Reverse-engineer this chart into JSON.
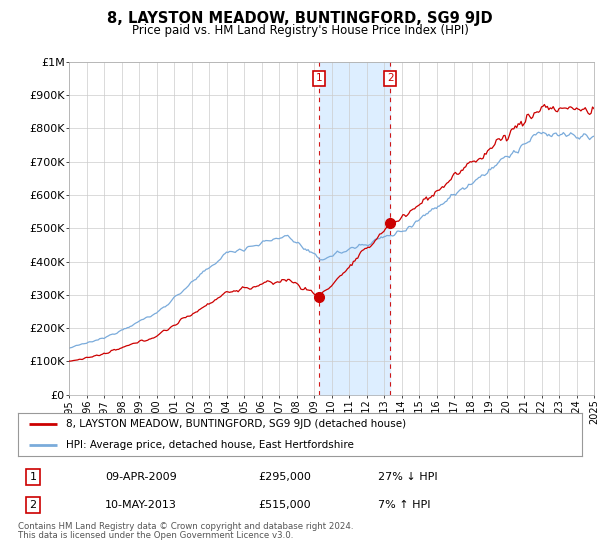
{
  "title": "8, LAYSTON MEADOW, BUNTINGFORD, SG9 9JD",
  "subtitle": "Price paid vs. HM Land Registry's House Price Index (HPI)",
  "ylabel_ticks": [
    "£0",
    "£100K",
    "£200K",
    "£300K",
    "£400K",
    "£500K",
    "£600K",
    "£700K",
    "£800K",
    "£900K",
    "£1M"
  ],
  "ytick_values": [
    0,
    100000,
    200000,
    300000,
    400000,
    500000,
    600000,
    700000,
    800000,
    900000,
    1000000
  ],
  "x_start_year": 1995,
  "x_end_year": 2025,
  "sale1_date": 2009.27,
  "sale1_price": 295000,
  "sale1_label": "1",
  "sale2_date": 2013.36,
  "sale2_price": 515000,
  "sale2_label": "2",
  "legend_line1": "8, LAYSTON MEADOW, BUNTINGFORD, SG9 9JD (detached house)",
  "legend_line2": "HPI: Average price, detached house, East Hertfordshire",
  "table_row1_num": "1",
  "table_row1_date": "09-APR-2009",
  "table_row1_price": "£295,000",
  "table_row1_hpi": "27% ↓ HPI",
  "table_row2_num": "2",
  "table_row2_date": "10-MAY-2013",
  "table_row2_price": "£515,000",
  "table_row2_hpi": "7% ↑ HPI",
  "footnote1": "Contains HM Land Registry data © Crown copyright and database right 2024.",
  "footnote2": "This data is licensed under the Open Government Licence v3.0.",
  "sale_color": "#cc0000",
  "hpi_color": "#7aabdb",
  "shade_color": "#ddeeff",
  "vline_color": "#cc0000",
  "box_border_color": "#cc0000"
}
